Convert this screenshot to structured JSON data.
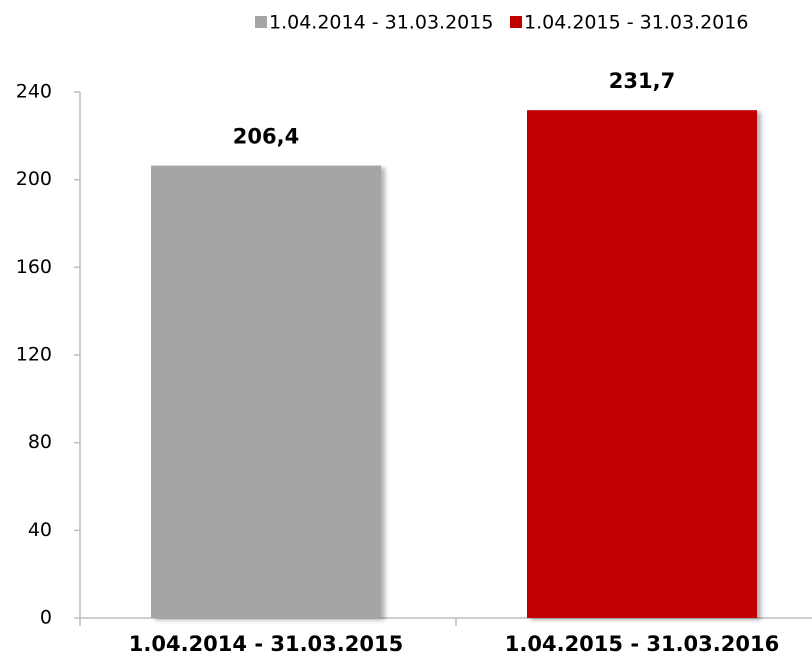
{
  "chart_data": {
    "type": "bar",
    "categories": [
      "1.04.2014 - 31.03.2015",
      "1.04.2015 - 31.03.2016"
    ],
    "values": [
      206.4,
      231.7
    ],
    "value_labels": [
      "206,4",
      "231,7"
    ],
    "colors": [
      "#a5a5a5",
      "#c00000"
    ],
    "ylim": [
      0,
      240
    ],
    "yticks": [
      0,
      40,
      80,
      120,
      160,
      200,
      240
    ],
    "grid": false,
    "legend": "top"
  }
}
